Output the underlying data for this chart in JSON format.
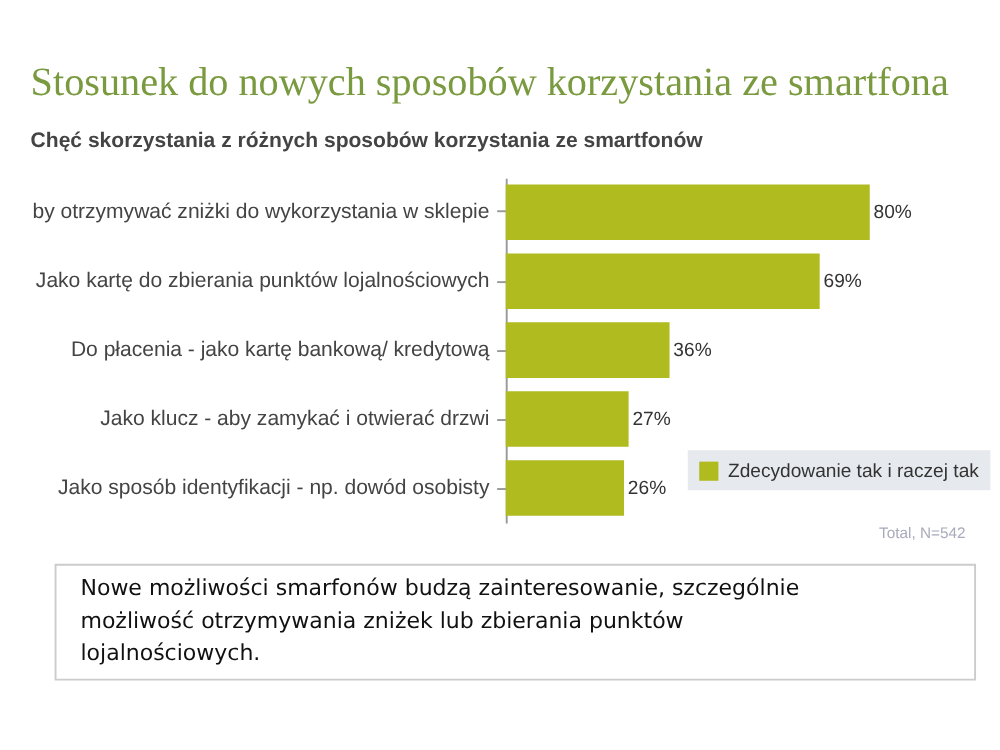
{
  "chart_data": {
    "type": "bar",
    "orientation": "horizontal",
    "title": "Stosunek do nowych sposobów korzystania ze smartfona",
    "subtitle": "Chęć skorzystania z różnych sposobów korzystania ze smartfonów",
    "categories": [
      "by otrzymywać zniżki do wykorzystania w sklepie",
      "Jako kartę do zbierania punktów lojalnościowych",
      "Do płacenia - jako kartę bankową/ kredytową",
      "Jako klucz - aby zamykać i otwierać drzwi",
      "Jako sposób identyfikacji - np. dowód osobisty"
    ],
    "series": [
      {
        "name": "Zdecydowanie tak i raczej tak",
        "color": "#afbb1f",
        "values": [
          80,
          69,
          36,
          27,
          26
        ],
        "value_labels": [
          "80%",
          "69%",
          "36%",
          "27%",
          "26%"
        ]
      }
    ],
    "legend": "bottom right",
    "grid": false,
    "annotations": [
      "Total, N=542",
      "Nowe możliwości smarfonów budzą zainteresowanie, szczególnie możliwość otrzymywania zniżek lub zbierania punktów lojalnościowych."
    ]
  }
}
